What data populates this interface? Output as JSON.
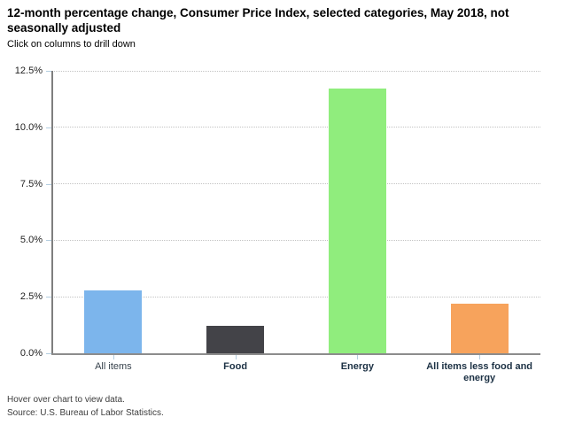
{
  "title": "12-month percentage change, Consumer Price Index, selected categories, May 2018, not seasonally adjusted",
  "subtitle": "Click on columns to drill down",
  "footer": {
    "hover_note": "Hover over chart to view data.",
    "source": "Source: U.S. Bureau of Labor Statistics."
  },
  "chart_data": {
    "type": "bar",
    "title": "12-month percentage change, Consumer Price Index, selected categories, May 2018, not seasonally adjusted",
    "subtitle": "Click on columns to drill down",
    "categories": [
      "All items",
      "Food",
      "Energy",
      "All items less food and energy"
    ],
    "values": [
      2.8,
      1.2,
      11.7,
      2.2
    ],
    "bar_colors": [
      "#7cb5ec",
      "#434348",
      "#90ed7d",
      "#f7a35c"
    ],
    "category_clickable": [
      false,
      true,
      true,
      true
    ],
    "clickable_label_color": "#1c3144",
    "xlabel": "",
    "ylabel": "",
    "ylim": [
      0,
      12.5
    ],
    "yticks": [
      "0.0%",
      "2.5%",
      "5.0%",
      "7.5%",
      "10.0%",
      "12.5%"
    ],
    "grid": "horizontal dotted",
    "legend": "none"
  }
}
